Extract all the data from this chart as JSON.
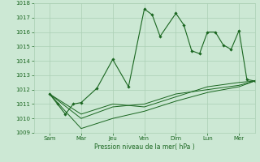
{
  "title": "",
  "xlabel": "Pression niveau de la mer( hPa )",
  "bg_color": "#cce8d4",
  "grid_color": "#aacfb4",
  "line_color": "#1a6620",
  "ylim": [
    1009,
    1018
  ],
  "yticks": [
    1009,
    1010,
    1011,
    1012,
    1013,
    1014,
    1015,
    1016,
    1017,
    1018
  ],
  "day_labels": [
    "Sam",
    "Mar",
    "Jeu",
    "Ven",
    "Dim",
    "Lun",
    "Mer"
  ],
  "day_positions": [
    0.5,
    1.5,
    2.5,
    3.5,
    4.5,
    5.5,
    6.5
  ],
  "xlim": [
    0,
    7
  ],
  "series": [
    {
      "x": [
        0.5,
        0.75,
        1.0,
        1.25,
        1.5,
        2.0,
        2.5,
        3.0,
        3.5,
        3.75,
        4.0,
        4.5,
        4.75,
        5.0,
        5.25,
        5.5,
        5.75,
        6.0,
        6.25,
        6.5,
        6.75,
        7.0
      ],
      "y": [
        1011.7,
        1011.0,
        1010.3,
        1011.0,
        1011.1,
        1012.1,
        1014.1,
        1012.2,
        1017.6,
        1017.2,
        1015.7,
        1017.3,
        1016.5,
        1014.7,
        1014.5,
        1016.0,
        1016.0,
        1015.1,
        1014.8,
        1016.1,
        1012.7,
        1012.6
      ],
      "markers": true
    },
    {
      "x": [
        0.5,
        1.5,
        2.5,
        3.5,
        4.5,
        5.5,
        6.5,
        7.0
      ],
      "y": [
        1011.7,
        1010.3,
        1011.0,
        1010.8,
        1011.5,
        1012.2,
        1012.5,
        1012.6
      ],
      "markers": false
    },
    {
      "x": [
        0.5,
        1.5,
        2.5,
        3.5,
        4.5,
        5.5,
        6.5,
        7.0
      ],
      "y": [
        1011.7,
        1009.3,
        1010.0,
        1010.5,
        1011.2,
        1011.8,
        1012.2,
        1012.6
      ],
      "markers": false
    },
    {
      "x": [
        0.5,
        1.5,
        2.5,
        3.5,
        4.5,
        5.5,
        6.5,
        7.0
      ],
      "y": [
        1011.7,
        1010.0,
        1010.8,
        1011.0,
        1011.7,
        1012.0,
        1012.3,
        1012.6
      ],
      "markers": false
    }
  ]
}
